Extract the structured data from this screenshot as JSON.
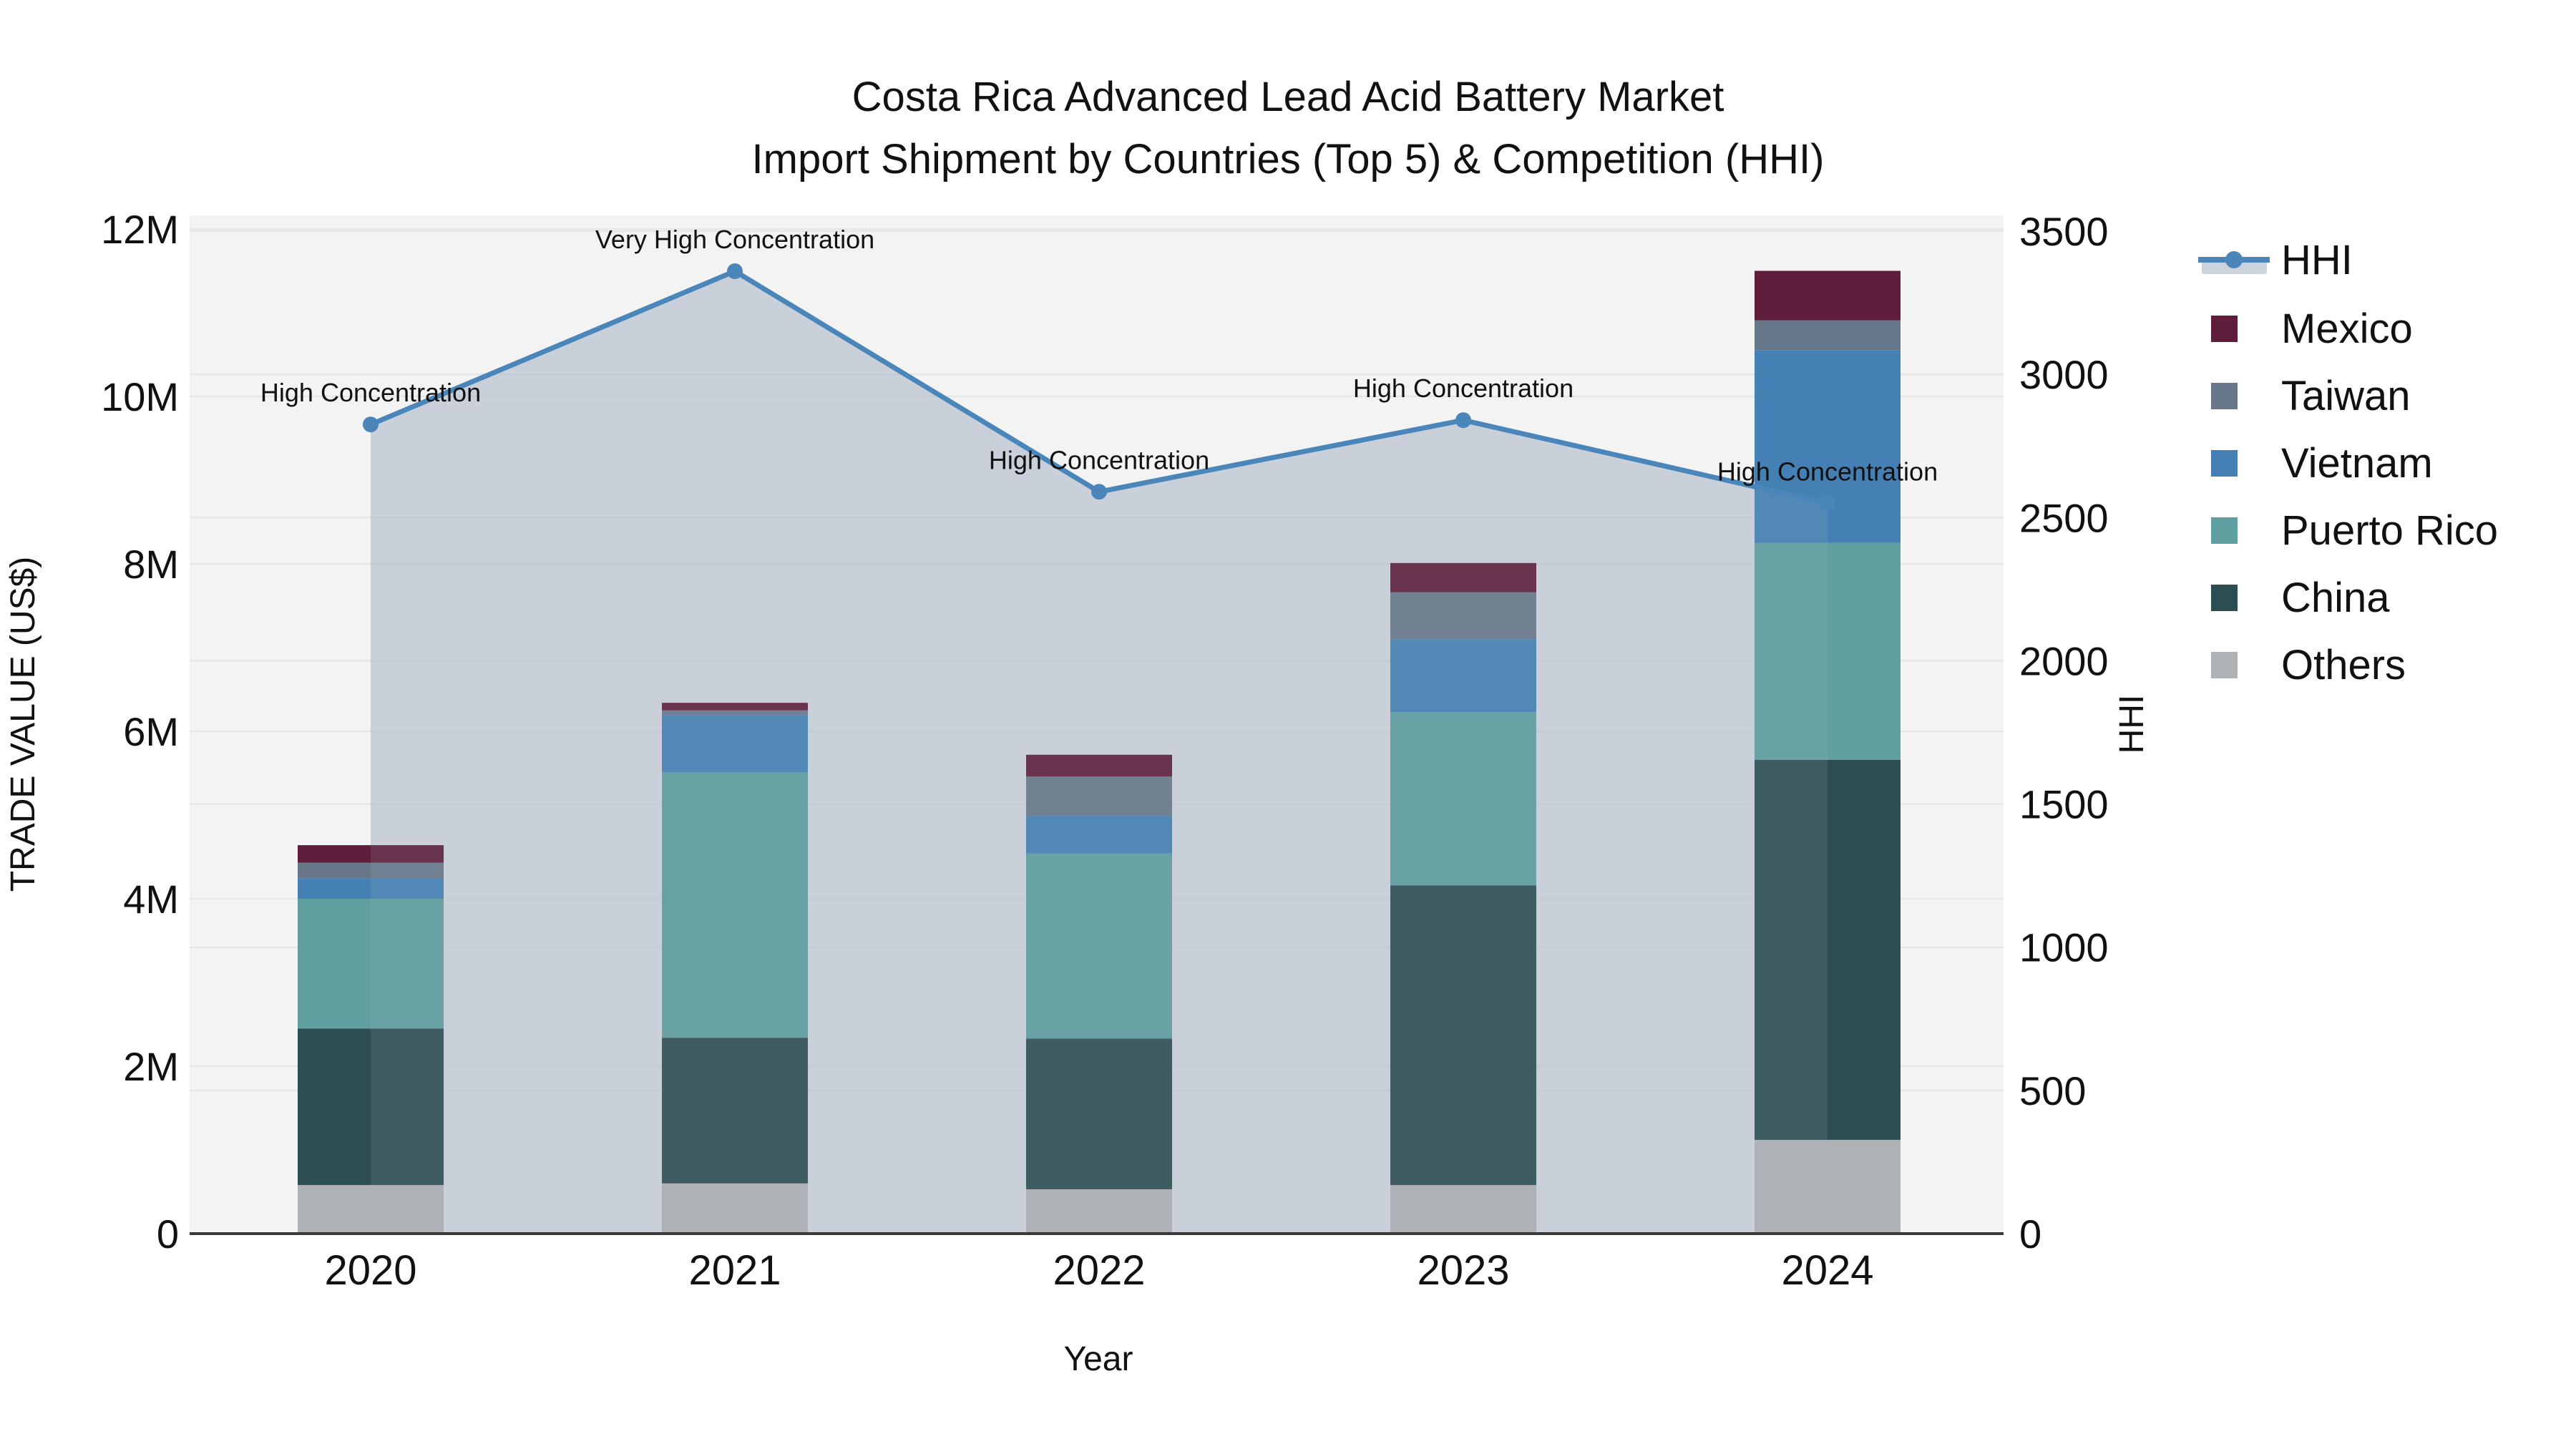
{
  "title": {
    "line1": "Costa Rica Advanced Lead Acid Battery Market",
    "line2": "Import Shipment by Countries (Top 5) & Competition (HHI)"
  },
  "colors": {
    "background": "#ffffff",
    "plot_background": "#f2f3f2",
    "gridline": "#e6e7e9",
    "axis_line": "#3a3a3a",
    "text": "#111111",
    "hhi_line": "#4a86ba",
    "hhi_marker": "#4a86ba",
    "hhi_area_under_bars": "rgba(167,178,195,0.45)",
    "hhi_area_over_bars": "rgba(167,178,195,0.15)",
    "legend_hhi_swatch_fill": "#ccd3dc",
    "series": {
      "Mexico": "#5e1d3a",
      "Taiwan": "#68788a",
      "Vietnam": "#4480b4",
      "Puerto Rico": "#5f9fa0",
      "China": "#2c4d51",
      "Others": "#afb2b4"
    }
  },
  "axes": {
    "x": {
      "title": "Year",
      "categories": [
        "2020",
        "2021",
        "2022",
        "2023",
        "2024"
      ]
    },
    "y_left": {
      "title": "TRADE VALUE (US$)",
      "tick_labels": [
        "0",
        "2M",
        "4M",
        "6M",
        "8M",
        "10M",
        "12M"
      ],
      "tick_values_millions": [
        0,
        2,
        4,
        6,
        8,
        10,
        12
      ],
      "range_millions": [
        0,
        12
      ]
    },
    "y_right": {
      "title": "HHI",
      "tick_labels": [
        "0",
        "500",
        "1000",
        "1500",
        "2000",
        "2500",
        "3000",
        "3500"
      ],
      "tick_values": [
        0,
        500,
        1000,
        1500,
        2000,
        2500,
        3000,
        3500
      ],
      "range": [
        0,
        3500
      ]
    }
  },
  "legend": {
    "items": [
      {
        "label": "HHI",
        "type": "line"
      },
      {
        "label": "Mexico",
        "type": "square"
      },
      {
        "label": "Taiwan",
        "type": "square"
      },
      {
        "label": "Vietnam",
        "type": "square"
      },
      {
        "label": "Puerto Rico",
        "type": "square"
      },
      {
        "label": "China",
        "type": "square"
      },
      {
        "label": "Others",
        "type": "square"
      }
    ]
  },
  "chart_data": {
    "type": "combo-stacked-bar-line",
    "categories": [
      "2020",
      "2021",
      "2022",
      "2023",
      "2024"
    ],
    "bar_value_unit": "US$ millions (TRADE VALUE)",
    "bar_series_bottom_to_top": [
      {
        "name": "Others",
        "values": [
          0.58,
          0.6,
          0.53,
          0.58,
          1.12
        ]
      },
      {
        "name": "China",
        "values": [
          1.87,
          1.74,
          1.8,
          3.58,
          4.54
        ]
      },
      {
        "name": "Puerto Rico",
        "values": [
          1.55,
          3.17,
          2.21,
          2.07,
          2.59
        ]
      },
      {
        "name": "Vietnam",
        "values": [
          0.24,
          0.68,
          0.45,
          0.87,
          2.3
        ]
      },
      {
        "name": "Taiwan",
        "values": [
          0.19,
          0.06,
          0.47,
          0.56,
          0.36
        ]
      },
      {
        "name": "Mexico",
        "values": [
          0.21,
          0.09,
          0.26,
          0.35,
          0.59
        ]
      }
    ],
    "bar_totals_millions": [
      4.64,
      6.34,
      5.72,
      8.01,
      11.5
    ],
    "line_series": {
      "name": "HHI",
      "axis": "right",
      "values": [
        2825,
        3360,
        2590,
        2840,
        2550
      ],
      "area_fill_between": [
        "2020",
        "2024"
      ]
    },
    "annotations": [
      {
        "category": "2020",
        "text": "High Concentration"
      },
      {
        "category": "2021",
        "text": "Very High Concentration"
      },
      {
        "category": "2022",
        "text": "High Concentration"
      },
      {
        "category": "2023",
        "text": "High Concentration"
      },
      {
        "category": "2024",
        "text": "High Concentration"
      }
    ],
    "legend_position": "right",
    "grid": true
  }
}
